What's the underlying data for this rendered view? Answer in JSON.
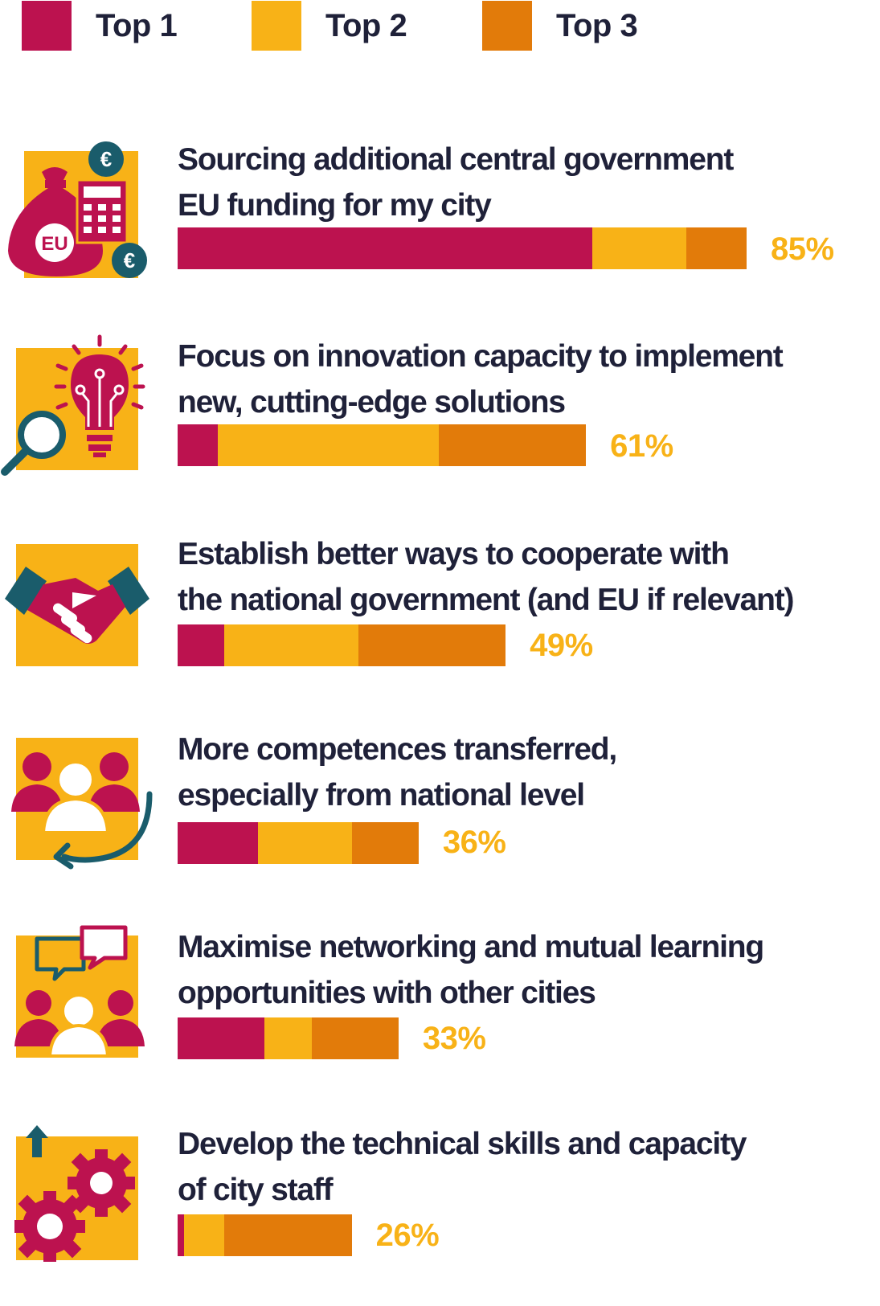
{
  "legend": [
    {
      "label": "Top 1",
      "color": "#bc124f"
    },
    {
      "label": "Top 2",
      "color": "#f8b217"
    },
    {
      "label": "Top 3",
      "color": "#e27b0a"
    }
  ],
  "items": [
    {
      "icon": "eu-funding-icon",
      "line1": "Sourcing additional central government",
      "line2": "EU funding for my city",
      "total_label": "85%"
    },
    {
      "icon": "innovation-lightbulb-icon",
      "line1": "Focus on innovation capacity to implement",
      "line2": "new, cutting-edge solutions",
      "total_label": "61%"
    },
    {
      "icon": "handshake-icon",
      "line1": "Establish better ways to cooperate with",
      "line2": "the national government (and EU if relevant)",
      "total_label": "49%"
    },
    {
      "icon": "people-transfer-icon",
      "line1": "More competences transferred,",
      "line2": "especially from national level",
      "total_label": "36%"
    },
    {
      "icon": "networking-chat-icon",
      "line1": "Maximise networking and mutual learning",
      "line2": "opportunities with other cities",
      "total_label": "33%"
    },
    {
      "icon": "gears-skills-icon",
      "line1": "Develop the technical skills and capacity",
      "line2": "of city staff",
      "total_label": "26%"
    }
  ],
  "chart_data": {
    "type": "bar",
    "orientation": "horizontal",
    "stacked": true,
    "categories": [
      "Sourcing additional central government EU funding for my city",
      "Focus on innovation capacity to implement new, cutting-edge solutions",
      "Establish better ways to cooperate with the national government (and EU if relevant)",
      "More competences transferred, especially from national level",
      "Maximise networking and mutual learning opportunities with other cities",
      "Develop the technical skills and capacity of city staff"
    ],
    "series": [
      {
        "name": "Top 1",
        "color": "#bc124f",
        "values": [
          62,
          6,
          7,
          12,
          13,
          1
        ]
      },
      {
        "name": "Top 2",
        "color": "#f8b217",
        "values": [
          14,
          33,
          20,
          14,
          7,
          6
        ]
      },
      {
        "name": "Top 3",
        "color": "#e27b0a",
        "values": [
          9,
          22,
          22,
          10,
          13,
          19
        ]
      }
    ],
    "totals": [
      85,
      61,
      49,
      36,
      33,
      26
    ],
    "legend_position": "top-left",
    "grid": false
  }
}
